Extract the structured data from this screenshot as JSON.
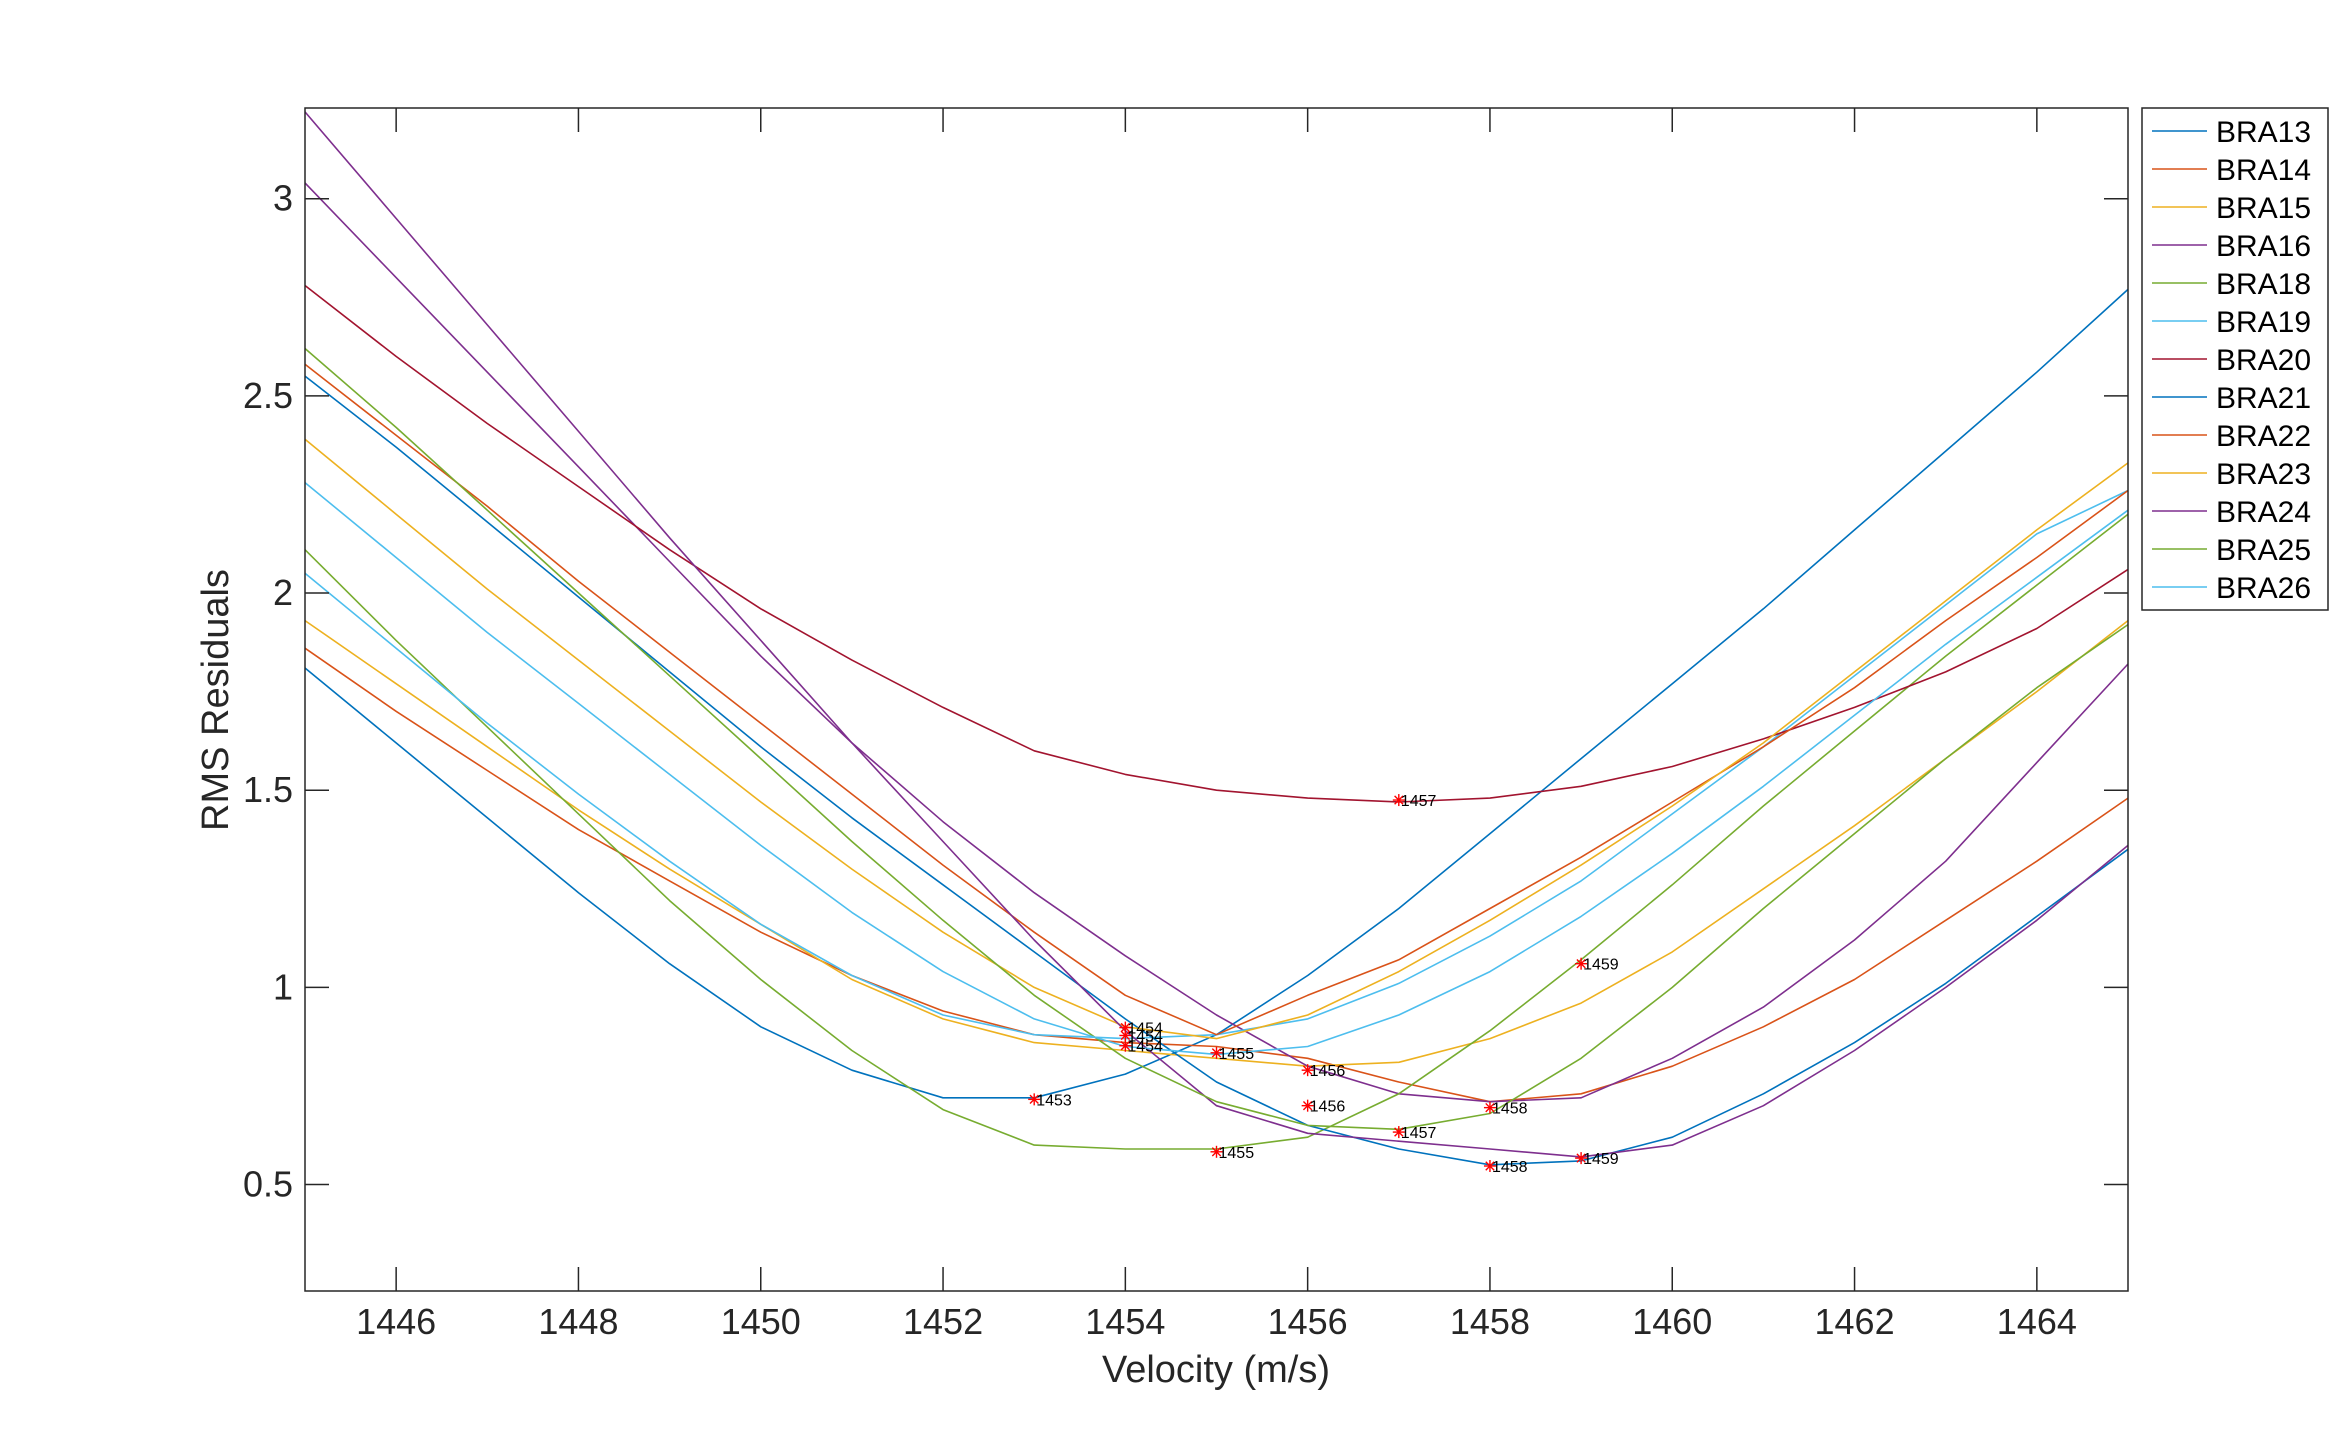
{
  "chart_data": {
    "type": "line",
    "title": "",
    "xlabel": "Velocity (m/s)",
    "ylabel": "RMS Residuals",
    "xlim": [
      1445,
      1465
    ],
    "ylim": [
      0.23,
      3.23
    ],
    "xticks": [
      1446,
      1448,
      1450,
      1452,
      1454,
      1456,
      1458,
      1460,
      1462,
      1464
    ],
    "yticks": [
      0.5,
      1,
      1.5,
      2,
      2.5,
      3
    ],
    "ytick_labels": [
      "0.5",
      "1",
      "1.5",
      "2",
      "2.5",
      "3"
    ],
    "grid": false,
    "legend_position": "outside-right-top",
    "x": [
      1445,
      1446,
      1447,
      1448,
      1449,
      1450,
      1451,
      1452,
      1453,
      1454,
      1455,
      1456,
      1457,
      1458,
      1459,
      1460,
      1461,
      1462,
      1463,
      1464,
      1465
    ],
    "series": [
      {
        "name": "BRA13",
        "color": "#0072BD",
        "values": [
          1.81,
          1.62,
          1.43,
          1.24,
          1.06,
          0.9,
          0.79,
          0.72,
          0.72,
          0.78,
          0.88,
          1.03,
          1.2,
          1.39,
          1.58,
          1.77,
          1.96,
          2.16,
          2.36,
          2.56,
          2.77
        ]
      },
      {
        "name": "BRA14",
        "color": "#D95319",
        "values": [
          1.86,
          1.7,
          1.55,
          1.4,
          1.27,
          1.14,
          1.03,
          0.94,
          0.88,
          0.86,
          0.85,
          0.82,
          0.76,
          0.71,
          0.73,
          0.8,
          0.9,
          1.02,
          1.17,
          1.32,
          1.48
        ]
      },
      {
        "name": "BRA15",
        "color": "#EDB120",
        "values": [
          1.93,
          1.77,
          1.61,
          1.45,
          1.3,
          1.16,
          1.02,
          0.92,
          0.86,
          0.84,
          0.82,
          0.8,
          0.81,
          0.87,
          0.96,
          1.09,
          1.25,
          1.41,
          1.58,
          1.75,
          1.93
        ]
      },
      {
        "name": "BRA16",
        "color": "#7E2F8E",
        "values": [
          3.04,
          2.8,
          2.56,
          2.32,
          2.08,
          1.84,
          1.62,
          1.42,
          1.24,
          1.08,
          0.93,
          0.8,
          0.73,
          0.71,
          0.72,
          0.82,
          0.95,
          1.12,
          1.32,
          1.57,
          1.82
        ]
      },
      {
        "name": "BRA18",
        "color": "#77AC30",
        "values": [
          2.11,
          1.88,
          1.66,
          1.44,
          1.22,
          1.02,
          0.84,
          0.69,
          0.6,
          0.59,
          0.59,
          0.62,
          0.73,
          0.89,
          1.07,
          1.26,
          1.46,
          1.65,
          1.84,
          2.02,
          2.2
        ]
      },
      {
        "name": "BRA19",
        "color": "#4DBEEE",
        "values": [
          2.05,
          1.86,
          1.67,
          1.49,
          1.32,
          1.16,
          1.03,
          0.93,
          0.88,
          0.87,
          0.88,
          0.92,
          1.01,
          1.13,
          1.27,
          1.44,
          1.61,
          1.79,
          1.97,
          2.15,
          2.26
        ]
      },
      {
        "name": "BRA20",
        "color": "#A2142F",
        "values": [
          2.78,
          2.6,
          2.43,
          2.27,
          2.11,
          1.96,
          1.83,
          1.71,
          1.6,
          1.54,
          1.5,
          1.48,
          1.47,
          1.48,
          1.51,
          1.56,
          1.63,
          1.71,
          1.8,
          1.91,
          2.06
        ]
      },
      {
        "name": "BRA21",
        "color": "#0072BD",
        "values": [
          2.55,
          2.37,
          2.18,
          1.99,
          1.8,
          1.61,
          1.43,
          1.26,
          1.09,
          0.92,
          0.76,
          0.65,
          0.59,
          0.55,
          0.56,
          0.62,
          0.73,
          0.86,
          1.01,
          1.18,
          1.35
        ]
      },
      {
        "name": "BRA22",
        "color": "#D95319",
        "values": [
          2.58,
          2.4,
          2.22,
          2.03,
          1.85,
          1.67,
          1.49,
          1.31,
          1.14,
          0.98,
          0.88,
          0.98,
          1.07,
          1.2,
          1.33,
          1.47,
          1.61,
          1.76,
          1.93,
          2.09,
          2.26
        ]
      },
      {
        "name": "BRA23",
        "color": "#EDB120",
        "values": [
          2.39,
          2.2,
          2.01,
          1.83,
          1.65,
          1.47,
          1.3,
          1.14,
          1.0,
          0.9,
          0.87,
          0.93,
          1.04,
          1.17,
          1.31,
          1.46,
          1.62,
          1.8,
          1.98,
          2.16,
          2.33
        ]
      },
      {
        "name": "BRA24",
        "color": "#7E2F8E",
        "values": [
          3.22,
          2.95,
          2.68,
          2.41,
          2.14,
          1.88,
          1.62,
          1.37,
          1.12,
          0.89,
          0.7,
          0.63,
          0.61,
          0.59,
          0.57,
          0.6,
          0.7,
          0.84,
          1.0,
          1.17,
          1.36
        ]
      },
      {
        "name": "BRA25",
        "color": "#77AC30",
        "values": [
          2.62,
          2.42,
          2.21,
          2.0,
          1.79,
          1.58,
          1.37,
          1.17,
          0.98,
          0.82,
          0.71,
          0.65,
          0.64,
          0.68,
          0.82,
          1.0,
          1.2,
          1.39,
          1.58,
          1.76,
          1.92
        ]
      },
      {
        "name": "BRA26",
        "color": "#4DBEEE",
        "values": [
          2.28,
          2.09,
          1.9,
          1.72,
          1.54,
          1.36,
          1.19,
          1.04,
          0.92,
          0.85,
          0.83,
          0.85,
          0.93,
          1.04,
          1.18,
          1.34,
          1.51,
          1.69,
          1.87,
          2.04,
          2.21
        ]
      }
    ],
    "minimum_markers": [
      {
        "x": 1457,
        "y": 1.475,
        "label": "1457"
      },
      {
        "x": 1459,
        "y": 1.06,
        "label": "1459"
      },
      {
        "x": 1454,
        "y": 0.898,
        "label": "1454"
      },
      {
        "x": 1454,
        "y": 0.878,
        "label": "1454"
      },
      {
        "x": 1454,
        "y": 0.852,
        "label": "1454"
      },
      {
        "x": 1455,
        "y": 0.834,
        "label": "1455"
      },
      {
        "x": 1456,
        "y": 0.79,
        "label": "1456"
      },
      {
        "x": 1453,
        "y": 0.716,
        "label": "1453"
      },
      {
        "x": 1456,
        "y": 0.7,
        "label": "1456"
      },
      {
        "x": 1458,
        "y": 0.695,
        "label": "1458"
      },
      {
        "x": 1457,
        "y": 0.633,
        "label": "1457"
      },
      {
        "x": 1455,
        "y": 0.583,
        "label": "1455"
      },
      {
        "x": 1459,
        "y": 0.567,
        "label": "1459"
      },
      {
        "x": 1458,
        "y": 0.547,
        "label": "1458"
      }
    ],
    "marker_color": "#FF0000"
  }
}
